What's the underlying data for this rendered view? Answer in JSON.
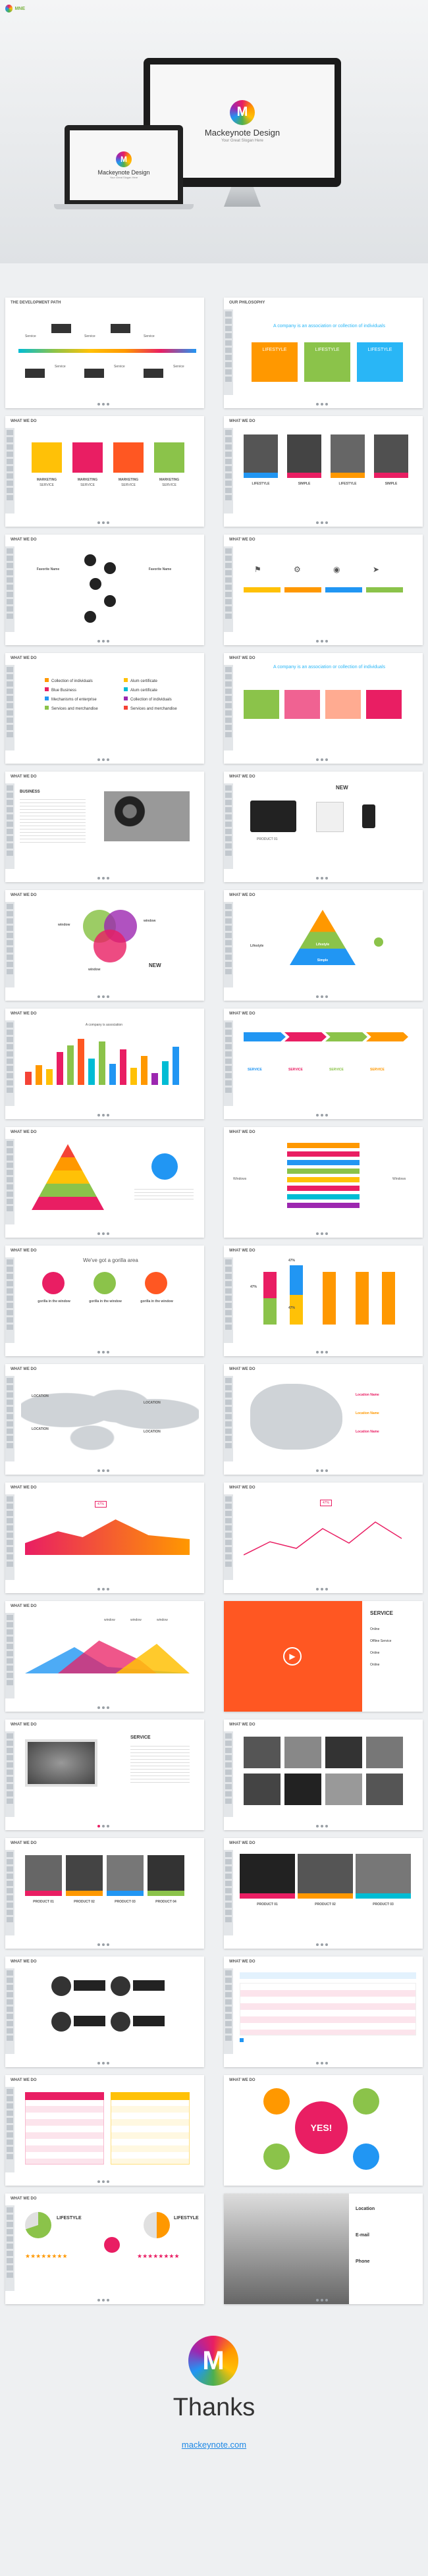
{
  "brand": {
    "corner_logo_text": "MNE"
  },
  "hero": {
    "title": "Mackeynote Design",
    "subtitle": "Your Great Slogan Here",
    "laptop_title": "Mackeynote Design",
    "laptop_subtitle": "Your Great Slogan Here"
  },
  "slides": {
    "s1": {
      "heading": "THE DEVELOPMENT PATH",
      "labels": [
        "Service",
        "Service",
        "Service",
        "Service",
        "Service",
        "Service"
      ]
    },
    "s2": {
      "heading": "OUR PHILOSOPHY",
      "tagline": "A company is an association or collection of individuals",
      "cards": [
        "LIFESTYLE",
        "LIFESTYLE",
        "LIFESTYLE"
      ]
    },
    "s3": {
      "heading": "WHAT WE DO",
      "items": [
        "MARKETING",
        "MARKETING",
        "MARKETING",
        "MARKETING"
      ],
      "sub": "SERVICE"
    },
    "s4": {
      "heading": "WHAT WE DO",
      "items": [
        "LIFESTYLE",
        "SIMPLE",
        "LIFESTYLE",
        "SIMPLE"
      ]
    },
    "s5": {
      "heading": "WHAT WE DO",
      "label_a": "Favorite Name",
      "label_b": "Favorite Name"
    },
    "s6": {
      "heading": "WHAT WE DO"
    },
    "s7": {
      "heading": "WHAT WE DO",
      "list": [
        "Collection of individuals",
        "Blue Business",
        "Mechanisms of enterprise",
        "Services and merchandise",
        "Alum certificate",
        "Alum certificate",
        "Collection of individuals",
        "Services and merchandise"
      ]
    },
    "s8": {
      "heading": "WHAT WE DO",
      "tagline": "A company is an association or collection of individuals"
    },
    "s9": {
      "heading": "WHAT WE DO",
      "title": "BUSINESS"
    },
    "s10": {
      "heading": "WHAT WE DO",
      "new_label": "NEW",
      "product": "PRODUCT 01"
    },
    "s11": {
      "heading": "WHAT WE DO",
      "venn": [
        "window",
        "window",
        "window"
      ],
      "new_label": "NEW"
    },
    "s12": {
      "heading": "WHAT WE DO",
      "pyramid": [
        "Lifestyle",
        "Lifestyle",
        "Simple"
      ]
    },
    "s13": {
      "heading": "WHAT WE DO",
      "title": "A company is association"
    },
    "s14": {
      "heading": "WHAT WE DO",
      "items": [
        "SERVICE",
        "SERVICE",
        "SERVICE",
        "SERVICE"
      ]
    },
    "s15": {
      "heading": "WHAT WE DO"
    },
    "s16": {
      "heading": "WHAT WE DO",
      "left": "Windows",
      "right": "Windows"
    },
    "s17": {
      "heading": "WHAT WE DO",
      "title": "We've got a gorilla area",
      "items": [
        "gorilla in the window",
        "gorilla in the window",
        "gorilla in the window"
      ]
    },
    "s18": {
      "heading": "WHAT WE DO",
      "percents": [
        "47%",
        "47%",
        "47%"
      ]
    },
    "s19": {
      "heading": "WHAT WE DO",
      "labels": [
        "LOCATION",
        "LOCATION",
        "LOCATION",
        "LOCATION"
      ]
    },
    "s20": {
      "heading": "WHAT WE DO",
      "labels": [
        "Location Name",
        "Location Name",
        "Location Name"
      ]
    },
    "s21": {
      "heading": "WHAT WE DO",
      "badge": "47%"
    },
    "s22": {
      "heading": "WHAT WE DO",
      "badge": "47%"
    },
    "s23": {
      "heading": "WHAT WE DO",
      "legend": [
        "window",
        "window",
        "window"
      ]
    },
    "s24": {
      "heading": "WHAT WE DO",
      "title": "SERVICE",
      "list": [
        "Online",
        "Offline Service",
        "Online",
        "Online"
      ]
    },
    "s25": {
      "heading": "WHAT WE DO",
      "title": "SERVICE"
    },
    "s26": {
      "heading": "WHAT WE DO"
    },
    "s27": {
      "heading": "WHAT WE DO",
      "products": [
        "PRODUCT 01",
        "PRODUCT 02",
        "PRODUCT 03",
        "PRODUCT 04"
      ]
    },
    "s28": {
      "heading": "WHAT WE DO",
      "products": [
        "PRODUCT 01",
        "PRODUCT 02",
        "PRODUCT 03"
      ]
    },
    "s29": {
      "heading": "WHAT WE DO"
    },
    "s30": {
      "heading": "WHAT WE DO"
    },
    "s31": {
      "heading": "WHAT WE DO"
    },
    "s32": {
      "heading": "WHAT WE DO",
      "center": "YES!"
    },
    "s33": {
      "heading": "WHAT WE DO",
      "items": [
        "LIFESTYLE",
        "LIFESTYLE"
      ]
    },
    "s34": {
      "heading": "WHAT WE DO",
      "contact": [
        "Location",
        "E-mail",
        "Phone"
      ]
    }
  },
  "closing": {
    "title": "Thanks",
    "url": "mackeynote.com"
  },
  "colors": {
    "red": "#f44336",
    "orange": "#ff9800",
    "yellow": "#ffc107",
    "green": "#8bc34a",
    "blue": "#2196f3",
    "pink": "#e91e63",
    "cyan": "#00bcd4"
  }
}
